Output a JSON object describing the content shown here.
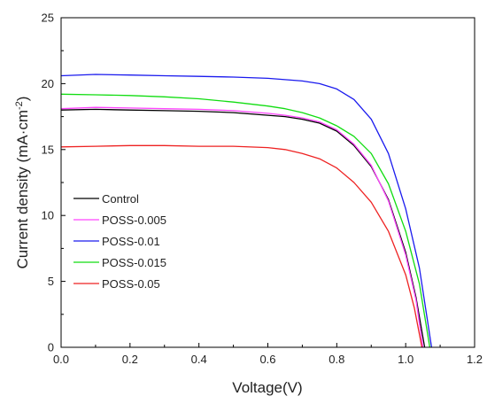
{
  "chart_data": {
    "type": "line",
    "title": "",
    "xlabel": "Voltage(V)",
    "ylabel_main": "Current density (mA·cm",
    "ylabel_sup": "-2",
    "ylabel_close": ")",
    "xlim": [
      0.0,
      1.2
    ],
    "ylim": [
      0,
      25
    ],
    "xticks": [
      0.0,
      0.2,
      0.4,
      0.6,
      0.8,
      1.0,
      1.2
    ],
    "xtick_labels": [
      "0.0",
      "0.2",
      "0.4",
      "0.6",
      "0.8",
      "1.0",
      "1.2"
    ],
    "yticks": [
      0,
      5,
      10,
      15,
      20,
      25
    ],
    "ytick_labels": [
      "0",
      "5",
      "10",
      "15",
      "20",
      "25"
    ],
    "grid": false,
    "legend_position": "bottom-left",
    "series": [
      {
        "name": "Control",
        "color": "#000000",
        "x": [
          0.0,
          0.1,
          0.2,
          0.3,
          0.4,
          0.5,
          0.6,
          0.65,
          0.7,
          0.75,
          0.8,
          0.85,
          0.9,
          0.95,
          1.0,
          1.03,
          1.055
        ],
        "y": [
          18.0,
          18.05,
          18.0,
          17.95,
          17.9,
          17.8,
          17.6,
          17.5,
          17.3,
          17.0,
          16.4,
          15.3,
          13.7,
          11.2,
          7.2,
          3.8,
          0.0
        ]
      },
      {
        "name": "POSS-0.005",
        "color": "#ff44ff",
        "x": [
          0.0,
          0.1,
          0.2,
          0.3,
          0.4,
          0.5,
          0.6,
          0.65,
          0.7,
          0.75,
          0.8,
          0.85,
          0.9,
          0.95,
          1.0,
          1.03,
          1.05
        ],
        "y": [
          18.1,
          18.2,
          18.15,
          18.1,
          18.05,
          17.95,
          17.75,
          17.6,
          17.4,
          17.1,
          16.5,
          15.4,
          13.8,
          11.1,
          7.0,
          3.6,
          0.0
        ]
      },
      {
        "name": "POSS-0.01",
        "color": "#1a1aee",
        "x": [
          0.0,
          0.1,
          0.2,
          0.3,
          0.4,
          0.5,
          0.6,
          0.7,
          0.75,
          0.8,
          0.85,
          0.9,
          0.95,
          1.0,
          1.04,
          1.075
        ],
        "y": [
          20.6,
          20.7,
          20.65,
          20.6,
          20.55,
          20.5,
          20.4,
          20.2,
          20.0,
          19.6,
          18.8,
          17.3,
          14.7,
          10.5,
          6.0,
          0.0
        ]
      },
      {
        "name": "POSS-0.015",
        "color": "#11dd11",
        "x": [
          0.0,
          0.1,
          0.2,
          0.3,
          0.4,
          0.5,
          0.6,
          0.65,
          0.7,
          0.75,
          0.8,
          0.85,
          0.9,
          0.95,
          1.0,
          1.04,
          1.07
        ],
        "y": [
          19.2,
          19.15,
          19.1,
          19.0,
          18.85,
          18.6,
          18.3,
          18.1,
          17.8,
          17.4,
          16.8,
          16.0,
          14.7,
          12.4,
          8.8,
          4.8,
          0.0
        ]
      },
      {
        "name": "POSS-0.05",
        "color": "#ee2222",
        "x": [
          0.0,
          0.1,
          0.2,
          0.3,
          0.4,
          0.5,
          0.6,
          0.65,
          0.7,
          0.75,
          0.8,
          0.85,
          0.9,
          0.95,
          1.0,
          1.025,
          1.047
        ],
        "y": [
          15.2,
          15.25,
          15.3,
          15.3,
          15.25,
          15.25,
          15.15,
          15.0,
          14.7,
          14.3,
          13.6,
          12.5,
          11.0,
          8.8,
          5.5,
          3.0,
          0.0
        ]
      }
    ]
  }
}
